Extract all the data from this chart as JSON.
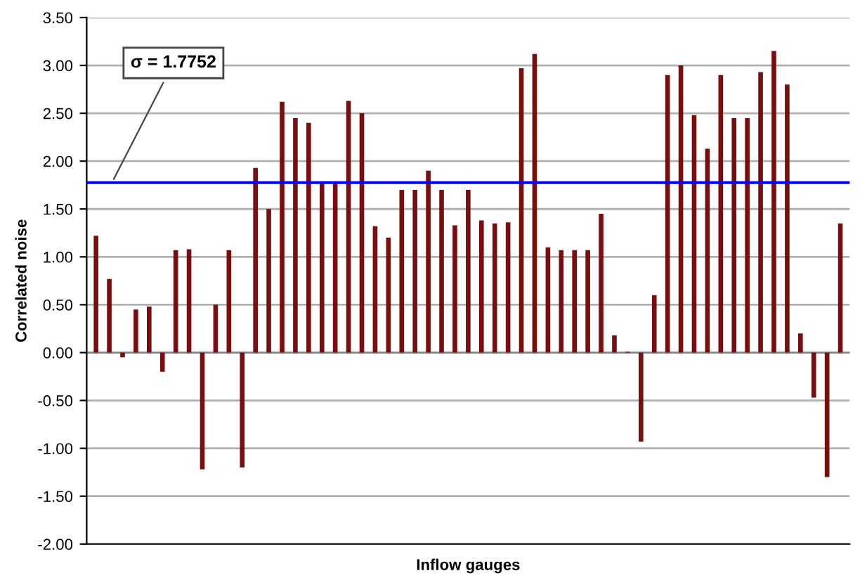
{
  "chart_data": {
    "type": "bar",
    "xlabel": "Inflow gauges",
    "ylabel": "Correlated noise",
    "categories": [
      null,
      null,
      null,
      null,
      null,
      null,
      null,
      null,
      null,
      null,
      null,
      null,
      null,
      null,
      null,
      null,
      null,
      null,
      null,
      null,
      null,
      null,
      null,
      null,
      null,
      null,
      null,
      null,
      null,
      null,
      null,
      null,
      null,
      null,
      null,
      null,
      null,
      null,
      null,
      null,
      null,
      null,
      null,
      null,
      null,
      null,
      null,
      null,
      null,
      null,
      null,
      null,
      null,
      null,
      null,
      null,
      null
    ],
    "values": [
      1.22,
      0.77,
      -0.05,
      0.45,
      0.48,
      -0.2,
      1.07,
      1.08,
      -1.22,
      0.5,
      1.07,
      -1.2,
      1.93,
      1.5,
      2.62,
      2.45,
      2.4,
      1.77,
      1.77,
      2.63,
      2.5,
      1.32,
      1.2,
      1.7,
      1.7,
      1.9,
      1.7,
      1.33,
      1.7,
      1.38,
      1.35,
      1.36,
      2.97,
      3.12,
      1.1,
      1.07,
      1.07,
      1.07,
      1.45,
      0.18,
      0.01,
      -0.93,
      0.6,
      2.9,
      3.0,
      2.48,
      2.13,
      2.9,
      2.45,
      2.45,
      2.93,
      3.15,
      2.8,
      0.2,
      -0.47,
      -1.3,
      1.35
    ],
    "color": "#7a0d0d",
    "ylim": [
      -2,
      3.5
    ],
    "yticks": [
      {
        "value": -2,
        "label": "-2.00"
      },
      {
        "value": -1.5,
        "label": "-1.50"
      },
      {
        "value": -1,
        "label": "-1.00"
      },
      {
        "value": -0.5,
        "label": "-0.50"
      },
      {
        "value": 0,
        "label": "0.00"
      },
      {
        "value": 0.5,
        "label": "0.50"
      },
      {
        "value": 1,
        "label": "1.00"
      },
      {
        "value": 1.5,
        "label": "1.50"
      },
      {
        "value": 2,
        "label": "2.00"
      },
      {
        "value": 2.5,
        "label": "2.50"
      },
      {
        "value": 3,
        "label": "3.00"
      },
      {
        "value": 3.5,
        "label": "3.50"
      }
    ],
    "grid": "y",
    "ref_lines": [
      {
        "axis": "y",
        "value": 1.7752,
        "label": "σ = 1.7752",
        "color": "#0000ff"
      }
    ]
  }
}
